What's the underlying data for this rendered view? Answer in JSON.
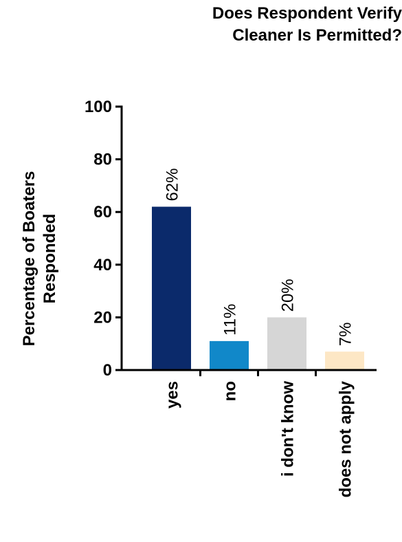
{
  "chart_data": {
    "type": "bar",
    "title_lines": [
      "Does Respondent Verify",
      "Cleaner Is Permitted?"
    ],
    "ylabel_lines": [
      "Percentage of Boaters",
      "Responded"
    ],
    "xlabel": "",
    "categories": [
      "yes",
      "no",
      "i don't know",
      "does not apply"
    ],
    "values": [
      62,
      11,
      20,
      7
    ],
    "data_labels": [
      "62%",
      "11%",
      "20%",
      "7%"
    ],
    "colors": [
      "#0b2a6b",
      "#1188c9",
      "#d6d6d6",
      "#fde7c5"
    ],
    "ylim": [
      0,
      100
    ],
    "yticks": [
      0,
      20,
      40,
      60,
      80,
      100
    ],
    "grid": false,
    "legend": "none"
  }
}
